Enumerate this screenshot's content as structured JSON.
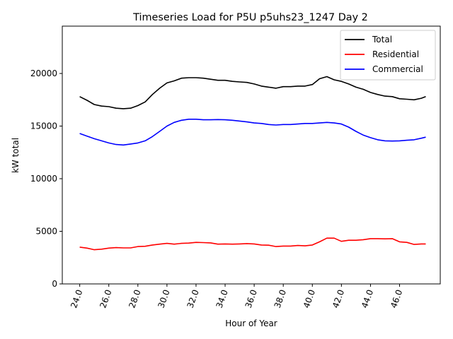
{
  "chart_data": {
    "type": "line",
    "title": "Timeseries Load for P5U p5uhs23_1247  Day 2",
    "xlabel": "Hour of Year",
    "ylabel": "kW total",
    "xlim": [
      22.8,
      48.8
    ],
    "ylim": [
      0,
      24500
    ],
    "x_ticks": [
      24,
      26,
      28,
      30,
      32,
      34,
      36,
      38,
      40,
      42,
      44,
      46
    ],
    "x_tick_labels": [
      "24.0",
      "26.0",
      "28.0",
      "30.0",
      "32.0",
      "34.0",
      "36.0",
      "38.0",
      "40.0",
      "42.0",
      "44.0",
      "46.0"
    ],
    "y_ticks": [
      0,
      5000,
      10000,
      15000,
      20000
    ],
    "y_tick_labels": [
      "0",
      "5000",
      "10000",
      "15000",
      "20000"
    ],
    "legend_position": "top-right",
    "series": [
      {
        "name": "Total",
        "color": "#000000",
        "x": [
          24.0,
          24.5,
          25.0,
          25.5,
          26.0,
          26.5,
          27.0,
          27.5,
          28.0,
          28.5,
          29.0,
          29.5,
          30.0,
          30.5,
          31.0,
          31.5,
          32.0,
          32.5,
          33.0,
          33.5,
          34.0,
          34.5,
          35.0,
          35.5,
          36.0,
          36.5,
          37.0,
          37.5,
          38.0,
          38.5,
          39.0,
          39.5,
          40.0,
          40.5,
          41.0,
          41.5,
          42.0,
          42.5,
          43.0,
          43.5,
          44.0,
          44.5,
          45.0,
          45.5,
          46.0,
          46.5,
          47.0,
          47.5,
          47.8
        ],
        "values": [
          17800,
          17450,
          17050,
          16900,
          16850,
          16700,
          16650,
          16700,
          16950,
          17300,
          18000,
          18600,
          19100,
          19300,
          19550,
          19600,
          19600,
          19550,
          19450,
          19350,
          19350,
          19250,
          19200,
          19150,
          19000,
          18800,
          18700,
          18600,
          18750,
          18750,
          18800,
          18800,
          18950,
          19500,
          19700,
          19400,
          19250,
          19000,
          18700,
          18500,
          18200,
          18000,
          17850,
          17800,
          17600,
          17550,
          17500,
          17650,
          17800
        ]
      },
      {
        "name": "Residential",
        "color": "#ff0000",
        "x": [
          24.0,
          24.5,
          25.0,
          25.5,
          26.0,
          26.5,
          27.0,
          27.5,
          28.0,
          28.5,
          29.0,
          29.5,
          30.0,
          30.5,
          31.0,
          31.5,
          32.0,
          32.5,
          33.0,
          33.5,
          34.0,
          34.5,
          35.0,
          35.5,
          36.0,
          36.5,
          37.0,
          37.5,
          38.0,
          38.5,
          39.0,
          39.5,
          40.0,
          40.5,
          41.0,
          41.5,
          42.0,
          42.5,
          43.0,
          43.5,
          44.0,
          44.5,
          45.0,
          45.5,
          46.0,
          46.5,
          47.0,
          47.5,
          47.8
        ],
        "values": [
          3500,
          3400,
          3250,
          3300,
          3400,
          3450,
          3420,
          3420,
          3550,
          3580,
          3700,
          3780,
          3850,
          3780,
          3850,
          3880,
          3950,
          3930,
          3900,
          3780,
          3800,
          3780,
          3800,
          3830,
          3800,
          3700,
          3680,
          3550,
          3600,
          3600,
          3650,
          3620,
          3700,
          4000,
          4350,
          4350,
          4050,
          4150,
          4150,
          4200,
          4300,
          4300,
          4280,
          4300,
          4000,
          3950,
          3750,
          3800,
          3800
        ]
      },
      {
        "name": "Commercial",
        "color": "#0000ff",
        "x": [
          24.0,
          24.5,
          25.0,
          25.5,
          26.0,
          26.5,
          27.0,
          27.5,
          28.0,
          28.5,
          29.0,
          29.5,
          30.0,
          30.5,
          31.0,
          31.5,
          32.0,
          32.5,
          33.0,
          33.5,
          34.0,
          34.5,
          35.0,
          35.5,
          36.0,
          36.5,
          37.0,
          37.5,
          38.0,
          38.5,
          39.0,
          39.5,
          40.0,
          40.5,
          41.0,
          41.5,
          42.0,
          42.5,
          43.0,
          43.5,
          44.0,
          44.5,
          45.0,
          45.5,
          46.0,
          46.5,
          47.0,
          47.5,
          47.8
        ],
        "values": [
          14300,
          14050,
          13800,
          13600,
          13400,
          13250,
          13200,
          13300,
          13400,
          13600,
          14000,
          14500,
          15000,
          15350,
          15550,
          15650,
          15650,
          15600,
          15600,
          15620,
          15600,
          15550,
          15480,
          15400,
          15300,
          15250,
          15150,
          15100,
          15150,
          15150,
          15200,
          15250,
          15250,
          15300,
          15350,
          15300,
          15200,
          14900,
          14500,
          14150,
          13900,
          13700,
          13600,
          13580,
          13600,
          13650,
          13700,
          13850,
          13950
        ]
      }
    ]
  }
}
